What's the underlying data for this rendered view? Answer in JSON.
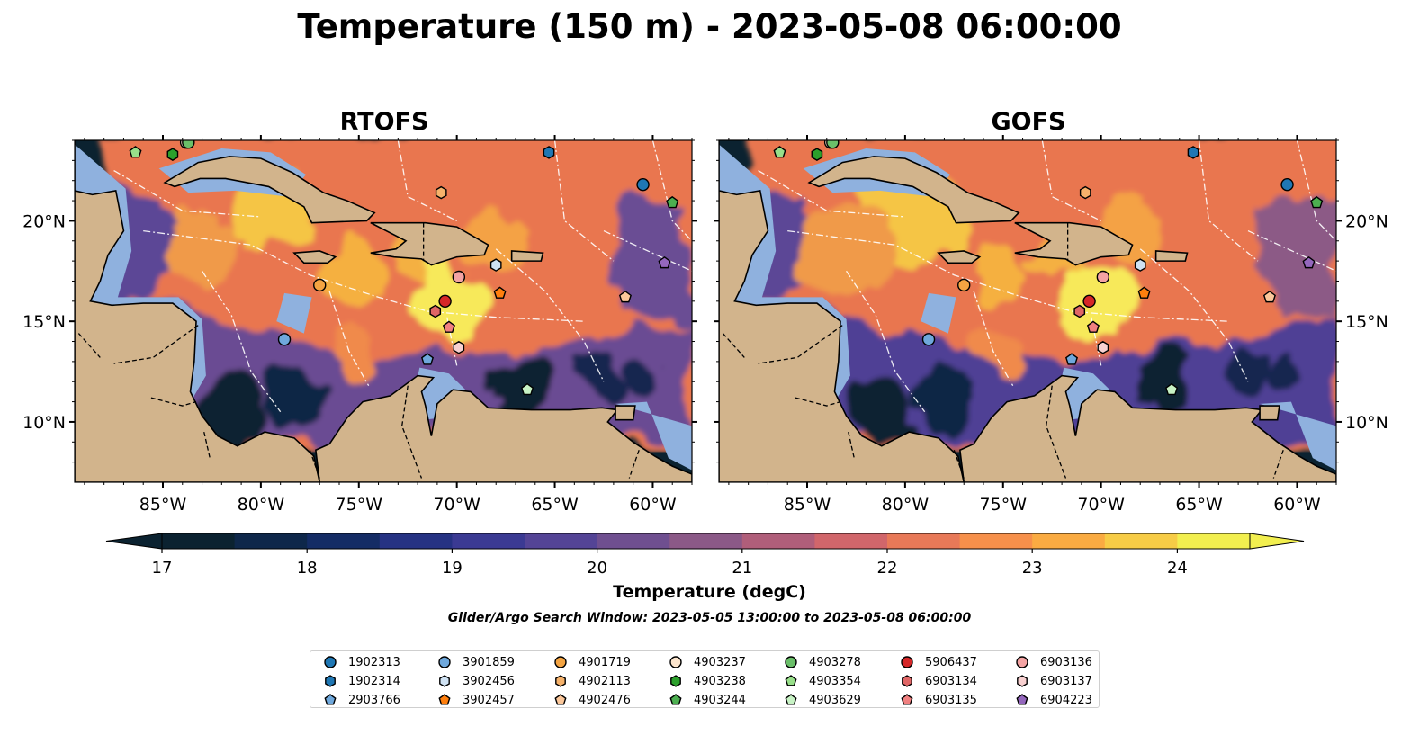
{
  "title": "Temperature (150 m) - 2023-05-08 06:00:00",
  "panels": [
    {
      "title": "RTOFS"
    },
    {
      "title": "GOFS"
    }
  ],
  "lon_ticks": [
    "85°W",
    "80°W",
    "75°W",
    "70°W",
    "65°W",
    "60°W"
  ],
  "lat_ticks": [
    "20°N",
    "15°N",
    "10°N"
  ],
  "map_extent": {
    "lon": [
      -89.5,
      -58.0
    ],
    "lat": [
      7.0,
      24.0
    ]
  },
  "colorbar": {
    "label": "Temperature (degC)",
    "min": 17,
    "max": 24.5,
    "step": 0.5,
    "ticks": [
      "17",
      "18",
      "19",
      "20",
      "21",
      "22",
      "23",
      "24"
    ],
    "colormap": "thermal",
    "extend": "both"
  },
  "search_window": "Glider/Argo Search Window: 2023-05-05 13:00:00 to 2023-05-08 06:00:00",
  "colors": {
    "land": "#d2b48c",
    "shallow_water": "#8fb1de",
    "deep_cold": "#0b2230",
    "eez_lines": "#ffffff"
  },
  "floats": [
    {
      "id": "1902313",
      "marker": "circle",
      "color": "#1f77b4",
      "lon": -60.5,
      "lat": 21.8
    },
    {
      "id": "1902314",
      "marker": "hexagon",
      "color": "#1f77b4",
      "lon": -65.3,
      "lat": 23.4
    },
    {
      "id": "2903766",
      "marker": "pentagon",
      "color": "#6fa8dc",
      "lon": -71.5,
      "lat": 13.1
    },
    {
      "id": "3901859",
      "marker": "circle",
      "color": "#6fa8dc",
      "lon": -78.8,
      "lat": 14.1
    },
    {
      "id": "3902456",
      "marker": "hexagon",
      "color": "#cfe2f3",
      "lon": -68.0,
      "lat": 17.8
    },
    {
      "id": "3902457",
      "marker": "pentagon",
      "color": "#ff7f0e",
      "lon": -67.8,
      "lat": 16.4
    },
    {
      "id": "4901719",
      "marker": "circle",
      "color": "#f4a442",
      "lon": -77.0,
      "lat": 16.8
    },
    {
      "id": "4902113",
      "marker": "hexagon",
      "color": "#f6b26b",
      "lon": -70.8,
      "lat": 21.4
    },
    {
      "id": "4902476",
      "marker": "pentagon",
      "color": "#fbc79a",
      "lon": -61.4,
      "lat": 16.2
    },
    {
      "id": "4903237",
      "marker": "circle",
      "color": "#fce5cd",
      "lon": -83.8,
      "lat": 23.9
    },
    {
      "id": "4903238",
      "marker": "hexagon",
      "color": "#2ca02c",
      "lon": -84.5,
      "lat": 23.3
    },
    {
      "id": "4903244",
      "marker": "pentagon",
      "color": "#4caf50",
      "lon": -59.0,
      "lat": 20.9
    },
    {
      "id": "4903278",
      "marker": "circle",
      "color": "#6abf69",
      "lon": -83.7,
      "lat": 23.9
    },
    {
      "id": "4903354",
      "marker": "pentagon",
      "color": "#98df8a",
      "lon": -86.4,
      "lat": 23.4
    },
    {
      "id": "4903629",
      "marker": "pentagon",
      "color": "#c7f2c4",
      "lon": -66.4,
      "lat": 11.6
    },
    {
      "id": "5906437",
      "marker": "circle",
      "color": "#d62728",
      "lon": -70.6,
      "lat": 16.0
    },
    {
      "id": "6903134",
      "marker": "hexagon",
      "color": "#e06666",
      "lon": -71.1,
      "lat": 15.5
    },
    {
      "id": "6903135",
      "marker": "pentagon",
      "color": "#f08080",
      "lon": -70.4,
      "lat": 14.7
    },
    {
      "id": "6903136",
      "marker": "circle",
      "color": "#f4a3a3",
      "lon": -69.9,
      "lat": 17.2
    },
    {
      "id": "6903137",
      "marker": "hexagon",
      "color": "#f8d0d0",
      "lon": -69.9,
      "lat": 13.7
    },
    {
      "id": "6904223",
      "marker": "pentagon",
      "color": "#9467bd",
      "lon": -59.4,
      "lat": 17.9
    }
  ]
}
